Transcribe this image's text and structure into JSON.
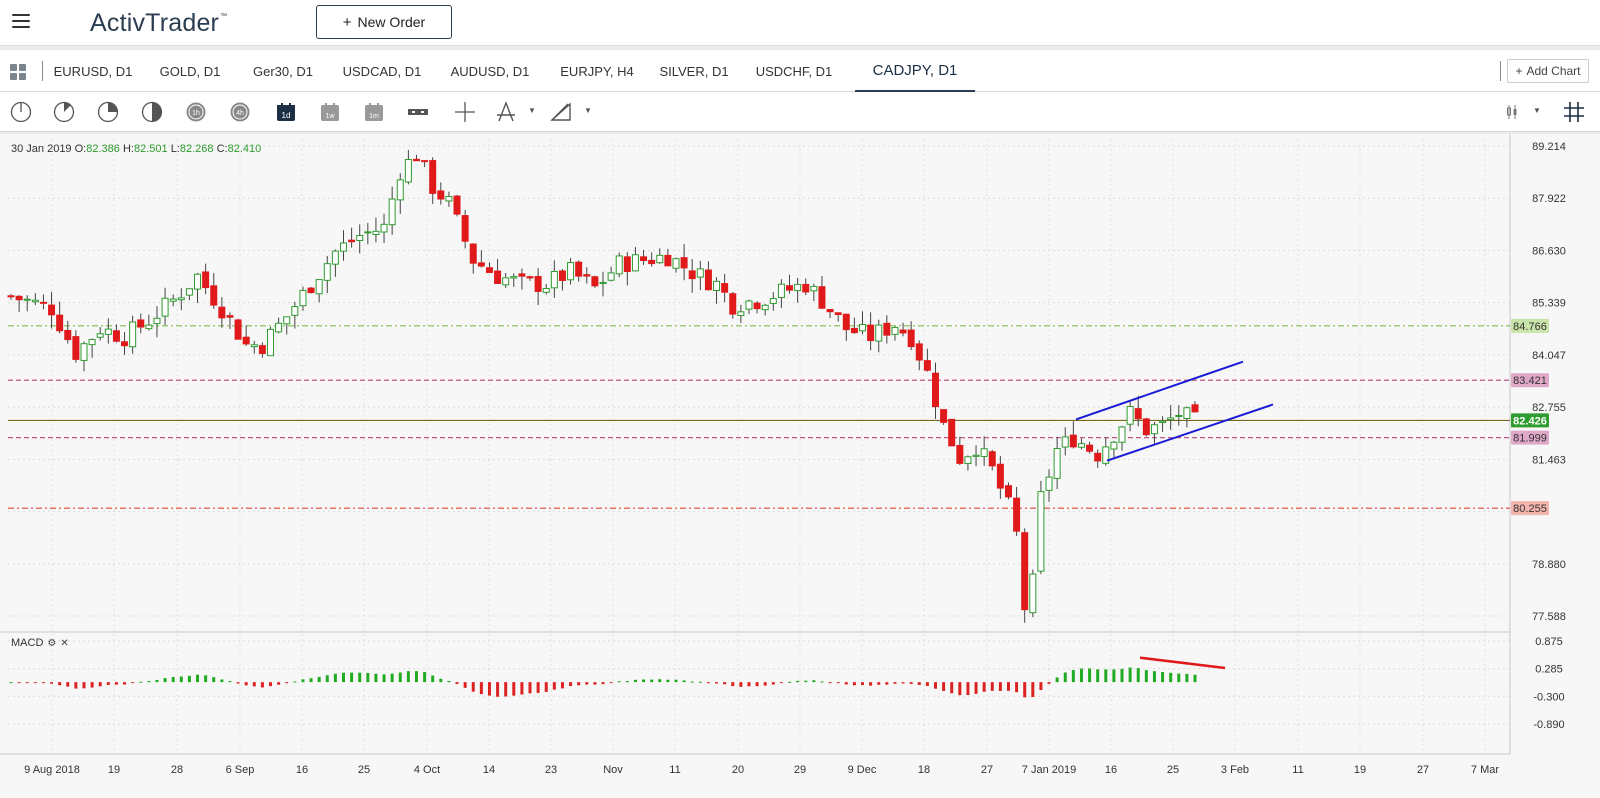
{
  "header": {
    "logo_text": "ActivTrader",
    "logo_tm": "™",
    "new_order_label": "New Order"
  },
  "tabs": [
    {
      "label": "EURUSD, D1"
    },
    {
      "label": "GOLD, D1"
    },
    {
      "label": "Ger30, D1"
    },
    {
      "label": "USDCAD, D1"
    },
    {
      "label": "AUDUSD, D1"
    },
    {
      "label": "EURJPY, H4"
    },
    {
      "label": "SILVER, D1"
    },
    {
      "label": "USDCHF, D1"
    },
    {
      "label": "CADJPY, D1",
      "active": true
    }
  ],
  "add_chart_label": "Add Chart",
  "toolbar": {
    "timeframe_1d_label": "1d",
    "timeframe_1w_label": "1w",
    "timeframe_1m_label": "1m",
    "circle_1h_label": "1h",
    "circle_4h_label": "4h"
  },
  "ohlc": {
    "date": "30 Jan 2019",
    "o_label": "O:",
    "o": "82.386",
    "h_label": "H:",
    "h": "82.501",
    "l_label": "L:",
    "l": "82.268",
    "c_label": "C:",
    "c": "82.410"
  },
  "macd_label": "MACD",
  "colors": {
    "up": "#2e9c2e",
    "down": "#e01a1a",
    "channel": "#1a1ad6",
    "green_level": "#7cc24e",
    "pink_level": "#c0447a",
    "red_level": "#e0453a",
    "current_price_line": "#7a6a20",
    "current_price_bg": "#2e9c2e"
  },
  "chart_data": {
    "type": "candlestick",
    "symbol": "CADJPY, D1",
    "y_ticks": [
      89.214,
      87.922,
      86.63,
      85.339,
      84.047,
      82.755,
      81.463,
      80.171,
      78.88,
      77.588
    ],
    "y_tick_labels": [
      "89.214",
      "87.922",
      "86.630",
      "85.339",
      "84.047",
      "82.755",
      "81.463",
      "",
      "78.880",
      "77.588"
    ],
    "ylim": [
      77.3,
      89.5
    ],
    "x_tick_labels": [
      "9 Aug 2018",
      "19",
      "28",
      "6 Sep",
      "16",
      "25",
      "4 Oct",
      "14",
      "23",
      "Nov",
      "11",
      "20",
      "29",
      "9 Dec",
      "18",
      "27",
      "7 Jan 2019",
      "16",
      "25",
      "3 Feb",
      "11",
      "19",
      "27",
      "7 Mar"
    ],
    "levels": [
      {
        "value": 84.766,
        "label": "84.766",
        "style": "green-dashdot"
      },
      {
        "value": 83.421,
        "label": "83.421",
        "style": "pink-dashed"
      },
      {
        "value": 82.426,
        "label": "82.426",
        "style": "current-price"
      },
      {
        "value": 81.999,
        "label": "81.999",
        "style": "pink-dashed"
      },
      {
        "value": 80.255,
        "label": "80.255",
        "style": "red-dashdot"
      }
    ],
    "macd": {
      "y_ticks": [
        0.875,
        0.285,
        -0.3,
        -0.89
      ],
      "y_tick_labels": [
        "0.875",
        "0.285",
        "-0.300",
        "-0.890"
      ],
      "ylim": [
        -1.1,
        1.0
      ]
    },
    "anchor_closes": [
      [
        0,
        85.5
      ],
      [
        5,
        85.2
      ],
      [
        8,
        84.1
      ],
      [
        11,
        84.7
      ],
      [
        14,
        84.5
      ],
      [
        17,
        84.9
      ],
      [
        20,
        85.4
      ],
      [
        23,
        86.0
      ],
      [
        26,
        85.2
      ],
      [
        29,
        84.3
      ],
      [
        31,
        84.3
      ],
      [
        34,
        85.0
      ],
      [
        37,
        85.8
      ],
      [
        40,
        86.6
      ],
      [
        43,
        87.0
      ],
      [
        46,
        87.2
      ],
      [
        48,
        88.6
      ],
      [
        50,
        89.0
      ],
      [
        52,
        88.2
      ],
      [
        54,
        87.8
      ],
      [
        57,
        86.4
      ],
      [
        60,
        86.0
      ],
      [
        63,
        85.8
      ],
      [
        66,
        85.8
      ],
      [
        69,
        86.1
      ],
      [
        72,
        85.7
      ],
      [
        75,
        86.3
      ],
      [
        78,
        86.4
      ],
      [
        81,
        86.5
      ],
      [
        84,
        86.1
      ],
      [
        87,
        85.8
      ],
      [
        89,
        85.3
      ],
      [
        92,
        85.4
      ],
      [
        95,
        85.6
      ],
      [
        98,
        85.8
      ],
      [
        100,
        85.4
      ],
      [
        103,
        84.7
      ],
      [
        106,
        84.5
      ],
      [
        109,
        84.8
      ],
      [
        111,
        84.5
      ],
      [
        113,
        83.6
      ],
      [
        115,
        82.3
      ],
      [
        117,
        81.5
      ],
      [
        119,
        81.8
      ],
      [
        121,
        81.2
      ],
      [
        123,
        80.3
      ],
      [
        124,
        79.6
      ],
      [
        125,
        77.8
      ],
      [
        126,
        78.4
      ],
      [
        127,
        80.5
      ],
      [
        129,
        81.7
      ],
      [
        131,
        82.0
      ],
      [
        134,
        81.6
      ],
      [
        136,
        82.1
      ],
      [
        138,
        82.6
      ],
      [
        140,
        82.2
      ],
      [
        142,
        82.3
      ],
      [
        144,
        82.6
      ],
      [
        146,
        82.4
      ]
    ],
    "candle_count": 147
  }
}
